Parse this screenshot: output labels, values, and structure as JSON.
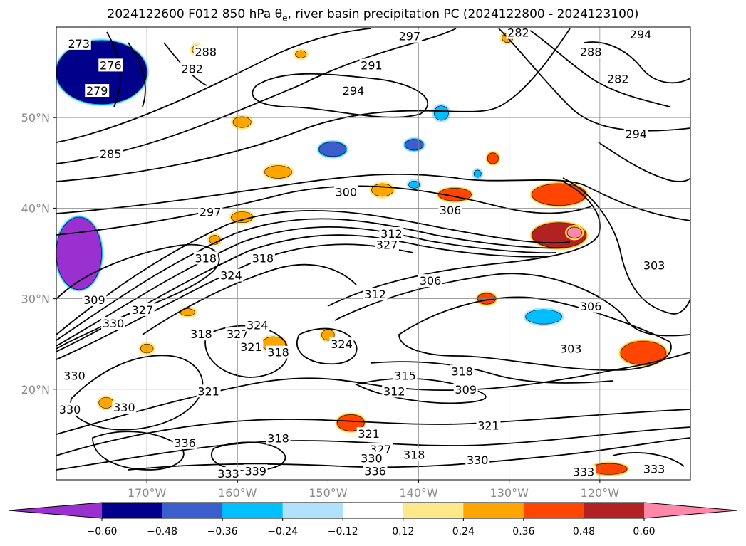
{
  "title": {
    "before": "2024122600 F012 850 hPa ",
    "symbol": "θ",
    "subscript": "e",
    "after": ", river basin precipitation PC (2024122800 - 2024123100)"
  },
  "colors": {
    "land_line": "#000000",
    "grid": "#808080",
    "contour": "#000000"
  },
  "chart_data": {
    "type": "contour-map",
    "projection": "plate-carree",
    "lon_range": [
      -180,
      -110
    ],
    "lat_range": [
      10,
      60
    ],
    "x_ticks": [
      {
        "lon": -170,
        "label": "170°W"
      },
      {
        "lon": -160,
        "label": "160°W"
      },
      {
        "lon": -150,
        "label": "150°W"
      },
      {
        "lon": -140,
        "label": "140°W"
      },
      {
        "lon": -130,
        "label": "130°W"
      },
      {
        "lon": -120,
        "label": "120°W"
      }
    ],
    "y_ticks": [
      {
        "lat": 50,
        "label": "50°N"
      },
      {
        "lat": 40,
        "label": "40°N"
      },
      {
        "lat": 30,
        "label": "30°N"
      },
      {
        "lat": 20,
        "label": "20°N"
      }
    ],
    "grid": true,
    "colorbar": {
      "orientation": "horizontal",
      "extend": "both",
      "levels": [
        -0.6,
        -0.48,
        -0.36,
        -0.24,
        -0.12,
        0.12,
        0.24,
        0.36,
        0.48,
        0.6
      ],
      "tick_labels": [
        "−0.60",
        "−0.48",
        "−0.36",
        "−0.24",
        "−0.12",
        "0.12",
        "0.24",
        "0.36",
        "0.48",
        "0.60"
      ],
      "under_color": "#9b30d0",
      "over_color": "#ff88aa",
      "bin_colors": [
        "#00008b",
        "#3a5fcd",
        "#00bfff",
        "#b0e2ff",
        "#ffffff",
        "#ffe88a",
        "#ffa500",
        "#ff4500",
        "#b22222"
      ]
    },
    "theta_e_contours": [
      {
        "level": 273,
        "lon": -177.5,
        "lat": 58.2,
        "label": "273"
      },
      {
        "level": 276,
        "lon": -174.0,
        "lat": 55.8,
        "label": "276"
      },
      {
        "level": 279,
        "lon": -175.5,
        "lat": 53.0,
        "label": "279"
      },
      {
        "level": 282,
        "lon": -165.0,
        "lat": 55.4,
        "label": "282"
      },
      {
        "level": 288,
        "lon": -163.5,
        "lat": 57.3,
        "label": "288"
      },
      {
        "level": 285,
        "lon": -174.0,
        "lat": 46.0,
        "label": "285"
      },
      {
        "level": 291,
        "lon": -145.2,
        "lat": 55.8,
        "label": "291"
      },
      {
        "level": 294,
        "lon": -147.2,
        "lat": 53.0,
        "label": "294"
      },
      {
        "level": 297,
        "lon": -141.0,
        "lat": 59.0,
        "label": "297"
      },
      {
        "level": 282,
        "lon": -129.0,
        "lat": 59.4,
        "label": "282"
      },
      {
        "level": 294,
        "lon": -115.5,
        "lat": 59.2,
        "label": "294"
      },
      {
        "level": 288,
        "lon": -121.0,
        "lat": 57.3,
        "label": "288"
      },
      {
        "level": 282,
        "lon": -118.0,
        "lat": 54.3,
        "label": "282"
      },
      {
        "level": 294,
        "lon": -116.0,
        "lat": 48.2,
        "label": "294"
      },
      {
        "level": 297,
        "lon": -163.0,
        "lat": 39.6,
        "label": "297"
      },
      {
        "level": 300,
        "lon": -148.0,
        "lat": 41.8,
        "label": "300"
      },
      {
        "level": 306,
        "lon": -136.5,
        "lat": 39.8,
        "label": "306"
      },
      {
        "level": 312,
        "lon": -143.0,
        "lat": 37.2,
        "label": "312"
      },
      {
        "level": 327,
        "lon": -143.5,
        "lat": 36.0,
        "label": "327"
      },
      {
        "level": 318,
        "lon": -163.5,
        "lat": 34.5,
        "label": "318"
      },
      {
        "level": 318,
        "lon": -157.2,
        "lat": 34.5,
        "label": "318"
      },
      {
        "level": 324,
        "lon": -160.7,
        "lat": 32.6,
        "label": "324"
      },
      {
        "level": 309,
        "lon": -175.8,
        "lat": 29.9,
        "label": "309"
      },
      {
        "level": 327,
        "lon": -170.5,
        "lat": 28.8,
        "label": "327"
      },
      {
        "level": 330,
        "lon": -173.7,
        "lat": 27.3,
        "label": "330"
      },
      {
        "level": 312,
        "lon": -144.8,
        "lat": 30.5,
        "label": "312"
      },
      {
        "level": 306,
        "lon": -138.7,
        "lat": 32.0,
        "label": "306"
      },
      {
        "level": 306,
        "lon": -121.0,
        "lat": 29.2,
        "label": "306"
      },
      {
        "level": 303,
        "lon": -114.0,
        "lat": 33.7,
        "label": "303"
      },
      {
        "level": 303,
        "lon": -123.2,
        "lat": 24.5,
        "label": "303"
      },
      {
        "level": 318,
        "lon": -164.0,
        "lat": 26.1,
        "label": "318"
      },
      {
        "level": 327,
        "lon": -160.0,
        "lat": 26.1,
        "label": "327"
      },
      {
        "level": 324,
        "lon": -157.8,
        "lat": 27.1,
        "label": "324"
      },
      {
        "level": 321,
        "lon": -158.5,
        "lat": 24.7,
        "label": "321"
      },
      {
        "level": 318,
        "lon": -155.5,
        "lat": 24.1,
        "label": "318"
      },
      {
        "level": 324,
        "lon": -148.5,
        "lat": 25.0,
        "label": "324"
      },
      {
        "level": 315,
        "lon": -141.5,
        "lat": 21.5,
        "label": "315"
      },
      {
        "level": 318,
        "lon": -135.2,
        "lat": 22.0,
        "label": "318"
      },
      {
        "level": 312,
        "lon": -142.7,
        "lat": 19.8,
        "label": "312"
      },
      {
        "level": 309,
        "lon": -134.8,
        "lat": 20.0,
        "label": "309"
      },
      {
        "level": 321,
        "lon": -163.2,
        "lat": 19.8,
        "label": "321"
      },
      {
        "level": 330,
        "lon": -178.0,
        "lat": 21.5,
        "label": "330"
      },
      {
        "level": 330,
        "lon": -178.5,
        "lat": 17.8,
        "label": "330"
      },
      {
        "level": 330,
        "lon": -172.5,
        "lat": 18.0,
        "label": "330"
      },
      {
        "level": 321,
        "lon": -132.3,
        "lat": 16.0,
        "label": "321"
      },
      {
        "level": 321,
        "lon": -145.5,
        "lat": 15.1,
        "label": "321"
      },
      {
        "level": 318,
        "lon": -155.5,
        "lat": 14.6,
        "label": "318"
      },
      {
        "level": 318,
        "lon": -140.5,
        "lat": 12.8,
        "label": "318"
      },
      {
        "level": 336,
        "lon": -165.8,
        "lat": 14.1,
        "label": "336"
      },
      {
        "level": 327,
        "lon": -144.2,
        "lat": 13.4,
        "label": "327"
      },
      {
        "level": 330,
        "lon": -145.2,
        "lat": 12.4,
        "label": "330"
      },
      {
        "level": 336,
        "lon": -144.8,
        "lat": 11.0,
        "label": "336"
      },
      {
        "level": 330,
        "lon": -133.5,
        "lat": 12.2,
        "label": "330"
      },
      {
        "level": 333,
        "lon": -161.0,
        "lat": 10.7,
        "label": "333"
      },
      {
        "level": 339,
        "lon": -158.0,
        "lat": 11.0,
        "label": "339"
      },
      {
        "level": 333,
        "lon": -121.8,
        "lat": 10.9,
        "label": "333"
      },
      {
        "level": 333,
        "lon": -114.0,
        "lat": 11.2,
        "label": "333"
      }
    ],
    "precip_pc_regions": [
      {
        "value": -0.5,
        "lon": -175.0,
        "lat": 55.0,
        "rx": 5.0,
        "ry": 3.5
      },
      {
        "value": -0.62,
        "lon": -177.5,
        "lat": 35.0,
        "rx": 2.5,
        "ry": 4.0
      },
      {
        "value": -0.4,
        "lon": -149.5,
        "lat": 46.5,
        "rx": 1.5,
        "ry": 0.8
      },
      {
        "value": -0.4,
        "lon": -140.5,
        "lat": 47.0,
        "rx": 1.0,
        "ry": 0.6
      },
      {
        "value": -0.3,
        "lon": -137.5,
        "lat": 50.5,
        "rx": 0.8,
        "ry": 0.8
      },
      {
        "value": -0.35,
        "lon": -126.2,
        "lat": 28.0,
        "rx": 2.0,
        "ry": 0.8
      },
      {
        "value": -0.3,
        "lon": -140.5,
        "lat": 42.6,
        "rx": 0.6,
        "ry": 0.4
      },
      {
        "value": -0.3,
        "lon": -133.5,
        "lat": 43.8,
        "rx": 0.4,
        "ry": 0.4
      },
      {
        "value": 0.3,
        "lon": -159.5,
        "lat": 49.5,
        "rx": 1.0,
        "ry": 0.6
      },
      {
        "value": 0.35,
        "lon": -155.5,
        "lat": 44.0,
        "rx": 1.5,
        "ry": 0.7
      },
      {
        "value": 0.32,
        "lon": -159.5,
        "lat": 39.0,
        "rx": 1.2,
        "ry": 0.6
      },
      {
        "value": 0.3,
        "lon": -144.0,
        "lat": 42.0,
        "rx": 1.2,
        "ry": 0.7
      },
      {
        "value": 0.4,
        "lon": -131.8,
        "lat": 45.5,
        "rx": 0.6,
        "ry": 0.6
      },
      {
        "value": 0.4,
        "lon": -136.0,
        "lat": 41.5,
        "rx": 1.8,
        "ry": 0.7
      },
      {
        "value": 0.45,
        "lon": -124.5,
        "lat": 41.5,
        "rx": 3.0,
        "ry": 1.2
      },
      {
        "value": 0.55,
        "lon": -124.5,
        "lat": 37.0,
        "rx": 3.0,
        "ry": 1.4
      },
      {
        "value": 0.62,
        "lon": -122.8,
        "lat": 37.3,
        "rx": 0.8,
        "ry": 0.6
      },
      {
        "value": 0.4,
        "lon": -115.2,
        "lat": 24.0,
        "rx": 2.5,
        "ry": 1.3
      },
      {
        "value": 0.4,
        "lon": -132.5,
        "lat": 30.0,
        "rx": 1.0,
        "ry": 0.6
      },
      {
        "value": 0.35,
        "lon": -156.0,
        "lat": 25.0,
        "rx": 1.3,
        "ry": 0.8
      },
      {
        "value": 0.35,
        "lon": -150.0,
        "lat": 26.0,
        "rx": 0.7,
        "ry": 0.6
      },
      {
        "value": 0.4,
        "lon": -147.5,
        "lat": 16.3,
        "rx": 1.5,
        "ry": 0.9
      },
      {
        "value": 0.3,
        "lon": -162.5,
        "lat": 36.5,
        "rx": 0.6,
        "ry": 0.5
      },
      {
        "value": 0.4,
        "lon": -119.0,
        "lat": 11.2,
        "rx": 2.0,
        "ry": 0.6
      },
      {
        "value": 0.3,
        "lon": -174.5,
        "lat": 18.5,
        "rx": 0.8,
        "ry": 0.6
      },
      {
        "value": 0.3,
        "lon": -165.5,
        "lat": 28.5,
        "rx": 0.8,
        "ry": 0.4
      },
      {
        "value": 0.3,
        "lon": -170.0,
        "lat": 24.5,
        "rx": 0.7,
        "ry": 0.5
      },
      {
        "value": 0.3,
        "lon": -130.2,
        "lat": 58.8,
        "rx": 0.6,
        "ry": 0.5
      },
      {
        "value": 0.3,
        "lon": -153.0,
        "lat": 57.0,
        "rx": 0.6,
        "ry": 0.4
      },
      {
        "value": 0.3,
        "lon": -164.5,
        "lat": 57.5,
        "rx": 0.5,
        "ry": 0.5
      }
    ]
  }
}
